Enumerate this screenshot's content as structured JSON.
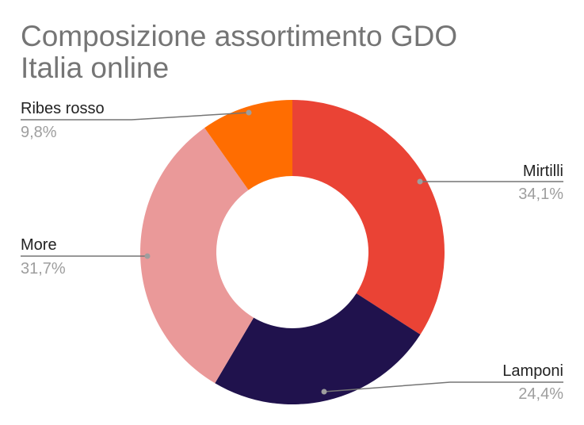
{
  "chart_data": {
    "type": "pie",
    "variant": "donut",
    "title_lines": [
      "Composizione assortimento GDO",
      "Italia online"
    ],
    "slices": [
      {
        "label": "Mirtilli",
        "value": 34.1,
        "value_label": "34,1%",
        "color": "#ea4335"
      },
      {
        "label": "Lamponi",
        "value": 24.4,
        "value_label": "24,4%",
        "color": "#20124d"
      },
      {
        "label": "More",
        "value": 31.7,
        "value_label": "31,7%",
        "color": "#ea9999"
      },
      {
        "label": "Ribes rosso",
        "value": 9.8,
        "value_label": "9,8%",
        "color": "#ff6d01"
      }
    ],
    "start_angle_deg": 0,
    "direction": "clockwise",
    "legend": "callout-labels",
    "label_line_color": "#757575"
  }
}
